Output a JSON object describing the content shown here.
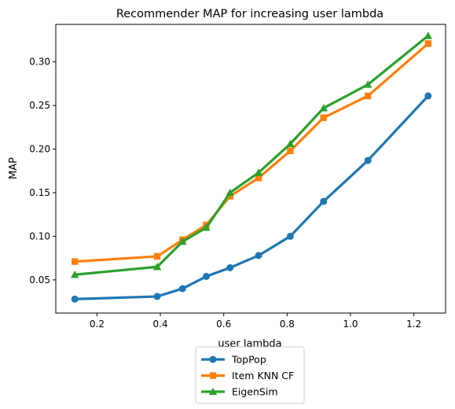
{
  "chart_data": {
    "type": "line",
    "title": "Recommender MAP for increasing user lambda",
    "xlabel": "user lambda",
    "ylabel": "MAP",
    "xlim": [
      0.07,
      1.3
    ],
    "ylim": [
      0.012,
      0.343
    ],
    "xticks": [
      0.2,
      0.4,
      0.6,
      0.8,
      1.0,
      1.2
    ],
    "xtick_labels": [
      "0.2",
      "0.4",
      "0.6",
      "0.8",
      "1.0",
      "1.2"
    ],
    "yticks": [
      0.05,
      0.1,
      0.15,
      0.2,
      0.25,
      0.3
    ],
    "ytick_labels": [
      "0.05",
      "0.10",
      "0.15",
      "0.20",
      "0.25",
      "0.30"
    ],
    "grid": false,
    "legend_position": "below plot, centered",
    "x": [
      0.13,
      0.39,
      0.47,
      0.545,
      0.62,
      0.71,
      0.81,
      0.915,
      1.055,
      1.245
    ],
    "series": [
      {
        "name": "TopPop",
        "color": "#1f77b4",
        "marker": "circle",
        "values": [
          0.028,
          0.031,
          0.04,
          0.054,
          0.064,
          0.078,
          0.1,
          0.14,
          0.187,
          0.261
        ]
      },
      {
        "name": "Item KNN CF",
        "color": "#ff7f0e",
        "marker": "square",
        "values": [
          0.071,
          0.077,
          0.096,
          0.113,
          0.146,
          0.167,
          0.198,
          0.236,
          0.261,
          0.321
        ]
      },
      {
        "name": "EigenSim",
        "color": "#2ca02c",
        "marker": "triangle",
        "values": [
          0.056,
          0.065,
          0.094,
          0.11,
          0.15,
          0.173,
          0.206,
          0.247,
          0.274,
          0.33
        ]
      }
    ]
  }
}
